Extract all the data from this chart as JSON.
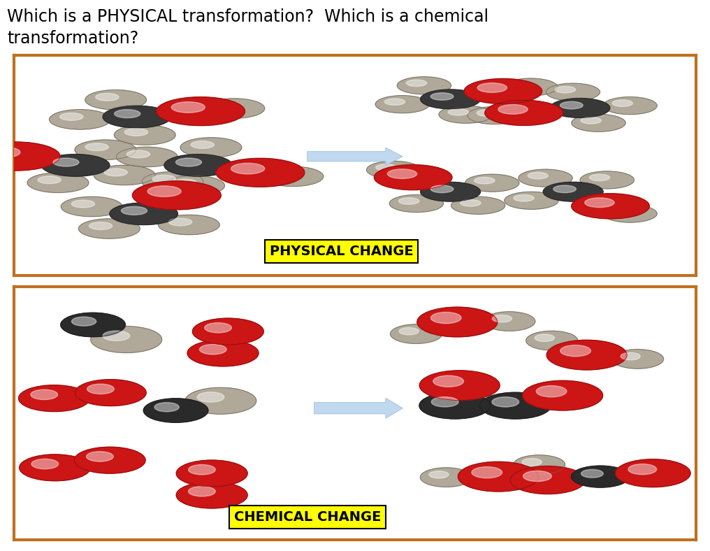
{
  "title_line1": "Which is a PHYSICAL transformation?  Which is a chemical",
  "title_line2": "transformation?",
  "title_fontsize": 17,
  "background_color": "#ffffff",
  "border_color": "#c07020",
  "border_width": 3,
  "panel1_label": "PHYSICAL CHANGE",
  "panel2_label": "CHEMICAL CHANGE",
  "label_bg": "#ffff00",
  "label_fontsize": 14,
  "arrow_color": "#c0d8f0",
  "panel_bg": "#ffffff"
}
